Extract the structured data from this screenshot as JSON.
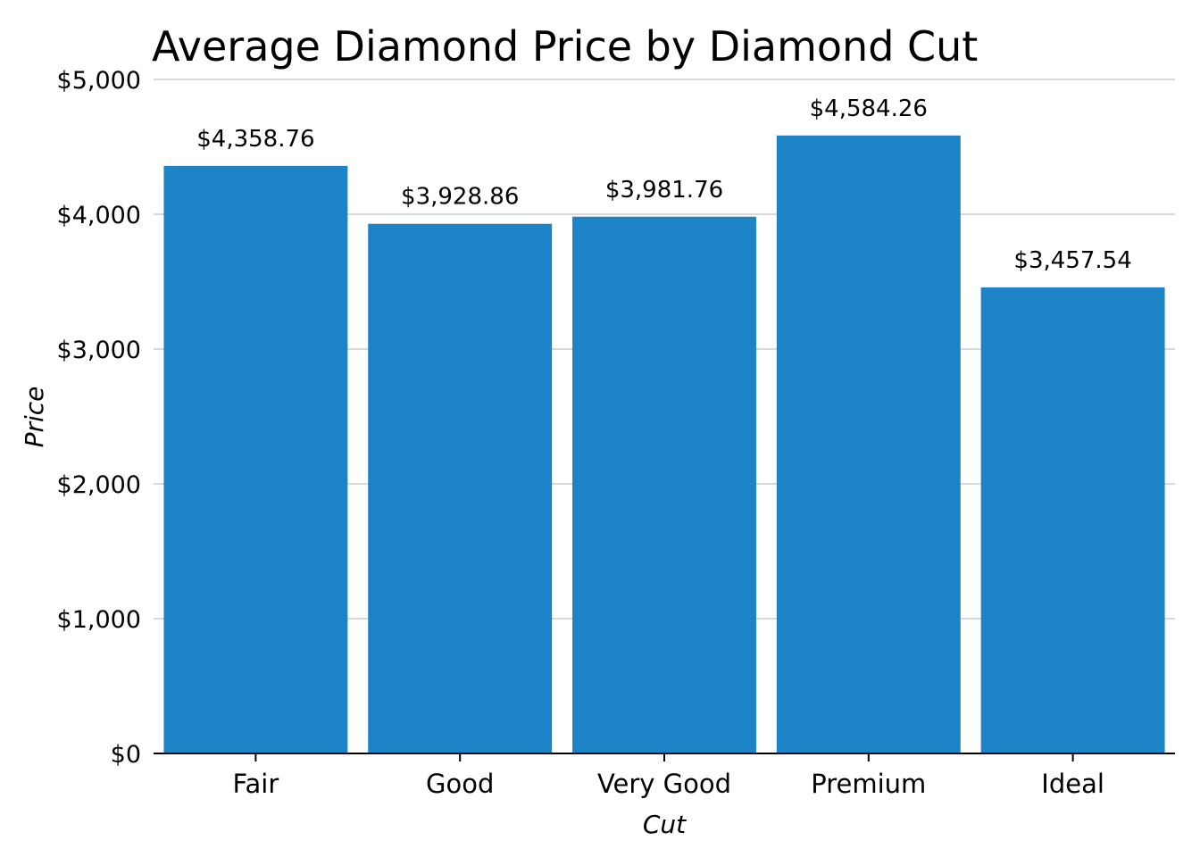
{
  "chart_data": {
    "type": "bar",
    "title": "Average Diamond Price by Diamond Cut",
    "xlabel": "Cut",
    "ylabel": "Price",
    "categories": [
      "Fair",
      "Good",
      "Very Good",
      "Premium",
      "Ideal"
    ],
    "values": [
      4358.76,
      3928.86,
      3981.76,
      4584.26,
      3457.54
    ],
    "value_labels": [
      "$4,358.76",
      "$3,928.86",
      "$3,981.76",
      "$4,584.26",
      "$3,457.54"
    ],
    "ylim": [
      0,
      5000
    ],
    "yticks": [
      0,
      1000,
      2000,
      3000,
      4000,
      5000
    ],
    "ytick_labels": [
      "$0",
      "$1,000",
      "$2,000",
      "$3,000",
      "$4,000",
      "$5,000"
    ],
    "grid": "horizontal",
    "bar_color": "#1c83c7",
    "grid_color": "#d9d9d9",
    "axis_color": "#000000"
  }
}
